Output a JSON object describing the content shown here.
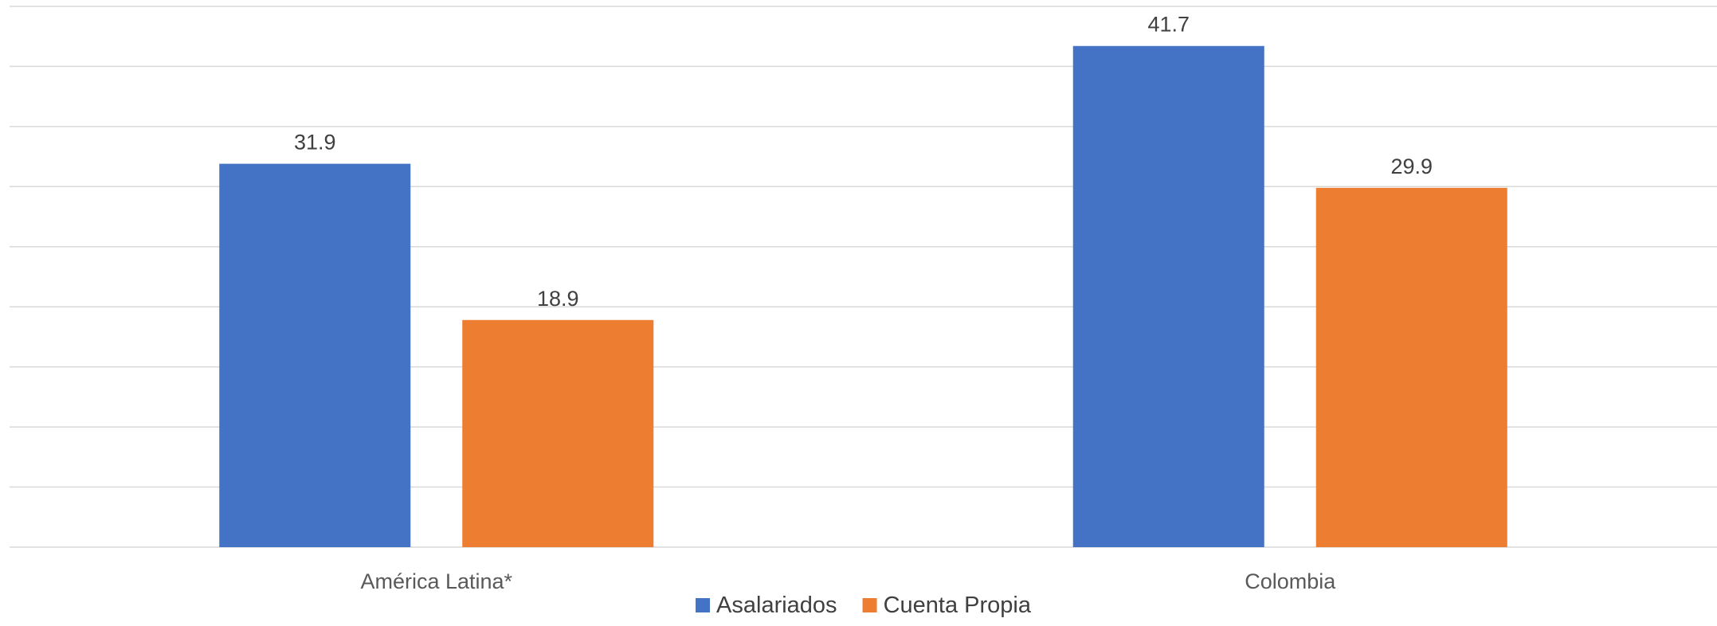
{
  "chart_data": {
    "type": "bar",
    "categories": [
      "América Latina*",
      "Colombia"
    ],
    "series": [
      {
        "name": "Asalariados",
        "values": [
          31.9,
          41.7
        ],
        "color": "#4472C4"
      },
      {
        "name": "Cuenta Propia",
        "values": [
          18.9,
          29.9
        ],
        "color": "#ED7D31"
      }
    ],
    "title": "",
    "xlabel": "",
    "ylabel": "",
    "ylim": [
      0,
      45
    ],
    "grid": true,
    "legend_position": "bottom"
  }
}
